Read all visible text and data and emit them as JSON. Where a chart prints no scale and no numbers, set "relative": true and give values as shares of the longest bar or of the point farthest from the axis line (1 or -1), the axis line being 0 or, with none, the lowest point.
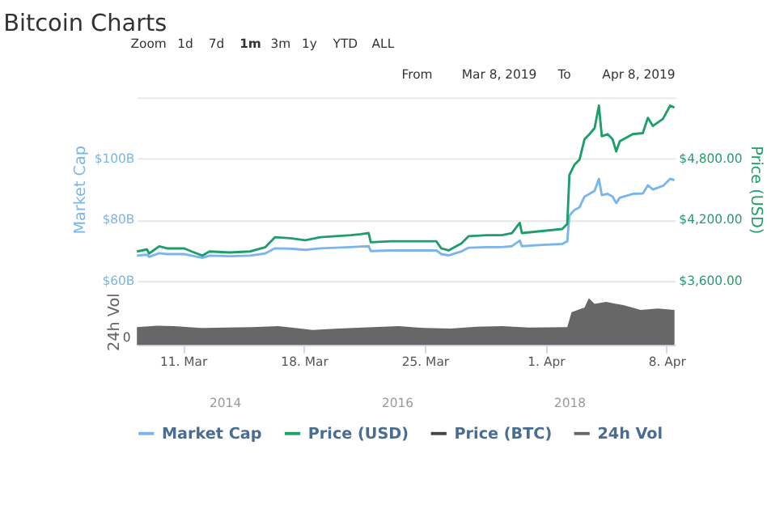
{
  "chart_data": [
    {
      "type": "line",
      "title": "Bitcoin Charts",
      "ylabel": "Market Cap",
      "y2label": "Price (USD)",
      "annotations": [
        "Zoom",
        "1d",
        "7d",
        "1m",
        "3m",
        "1y",
        "YTD",
        "ALL",
        "From",
        "Mar 8, 2019",
        "To",
        "Apr 8, 2019"
      ],
      "x": [
        "2019-03-08T08:00",
        "2019-03-08T22:00",
        "2019-03-09T01:00",
        "2019-03-09T15:00",
        "2019-03-10T02:00",
        "2019-03-11T02:00",
        "2019-03-11T12:00",
        "2019-03-12T03:00",
        "2019-03-12T13:00",
        "2019-03-13T17:00",
        "2019-03-14T21:00",
        "2019-03-15T18:00",
        "2019-03-16T08:00",
        "2019-03-17T05:00",
        "2019-03-18T02:00",
        "2019-03-18T23:00",
        "2019-03-19T20:00",
        "2019-03-20T17:00",
        "2019-03-21T07:00",
        "2019-03-21T18:00",
        "2019-03-21T21:00",
        "2019-03-23T01:00",
        "2019-03-24T05:00",
        "2019-03-25T16:00",
        "2019-03-25T23:00",
        "2019-03-26T09:00",
        "2019-03-27T03:00",
        "2019-03-27T13:00",
        "2019-03-28T14:00",
        "2019-03-29T11:00",
        "2019-03-30T01:00",
        "2019-03-30T12:00",
        "2019-03-30T15:00",
        "2019-03-31T19:00",
        "2019-04-01T23:00",
        "2019-04-02T06:00",
        "2019-04-02T09:00",
        "2019-04-02T16:00",
        "2019-04-02T23:00",
        "2019-04-03T06:00",
        "2019-04-03T13:00",
        "2019-04-03T20:00",
        "2019-04-04T02:00",
        "2019-04-04T06:00",
        "2019-04-04T14:00",
        "2019-04-04T21:00",
        "2019-04-05T02:00",
        "2019-04-05T07:00",
        "2019-04-06T01:00",
        "2019-04-06T15:00",
        "2019-04-06T22:00",
        "2019-04-07T05:00",
        "2019-04-07T19:00",
        "2019-04-08T05:00",
        "2019-04-08T11:00"
      ],
      "series": [
        {
          "name": "Market Cap",
          "color": "#7cb5ec",
          "values": [
            68.3,
            68.6,
            67.9,
            69.1,
            68.8,
            68.8,
            68.3,
            67.6,
            68.3,
            68.1,
            68.3,
            69.0,
            70.7,
            70.6,
            70.2,
            70.7,
            70.9,
            71.1,
            71.3,
            71.4,
            69.8,
            70.0,
            70.0,
            70.0,
            68.8,
            68.4,
            69.7,
            70.9,
            71.1,
            71.1,
            71.4,
            73.2,
            71.4,
            71.8,
            72.1,
            73.0,
            81.4,
            83.2,
            84.1,
            87.6,
            88.5,
            89.5,
            93.4,
            88.1,
            88.5,
            87.6,
            85.5,
            87.2,
            88.5,
            88.6,
            91.3,
            89.9,
            91.1,
            93.4,
            93.0
          ]
        },
        {
          "name": "Price (USD)",
          "color": "#1e9e6a",
          "axis": "y2",
          "values": [
            3890,
            3910,
            3870,
            3940,
            3920,
            3920,
            3890,
            3850,
            3890,
            3880,
            3890,
            3930,
            4030,
            4020,
            4000,
            4030,
            4040,
            4050,
            4060,
            4070,
            3980,
            3990,
            3990,
            3990,
            3920,
            3900,
            3970,
            4040,
            4050,
            4050,
            4070,
            4170,
            4070,
            4090,
            4110,
            4160,
            4640,
            4740,
            4790,
            4990,
            5040,
            5100,
            5320,
            5020,
            5040,
            4990,
            4870,
            4970,
            5040,
            5050,
            5200,
            5120,
            5190,
            5320,
            5300
          ]
        },
        {
          "name": "Price (BTC)",
          "color": "#434348",
          "values": [
            null,
            null,
            null,
            null,
            null,
            null,
            null,
            null,
            null,
            null,
            null,
            null,
            null,
            null,
            null,
            null,
            null,
            null,
            null,
            null,
            null,
            null,
            null,
            null,
            null,
            null,
            null,
            null,
            null,
            null,
            null,
            null,
            null,
            null,
            null,
            null,
            null,
            null,
            null,
            null,
            null,
            null,
            null,
            null,
            null,
            null,
            null,
            null,
            null,
            null,
            null,
            null,
            null,
            null,
            null
          ]
        }
      ],
      "xlim": [
        "2019-03-08T08:00",
        "2019-04-08T12:00"
      ],
      "ylim": [
        60,
        120
      ],
      "yticks": [
        {
          "value": 60,
          "label": "$60B"
        },
        {
          "value": 80,
          "label": "$80B"
        },
        {
          "value": 100,
          "label": "$100B"
        },
        {
          "value": 120,
          "label": null
        }
      ],
      "y2lim": [
        3600,
        5400
      ],
      "y2ticks": [
        {
          "value": 3600,
          "label": "$3,600.00"
        },
        {
          "value": 4200,
          "label": "$4,200.00"
        },
        {
          "value": 4800,
          "label": "$4,800.00"
        },
        {
          "value": 5400,
          "label": null
        }
      ],
      "tick_labels": "y",
      "grid": "y",
      "marker": "none",
      "line_style": "solid",
      "legend": "bottom"
    },
    {
      "type": "area",
      "relative": true,
      "ylabel": "24h Vol",
      "annotations": [
        "0"
      ],
      "series": [
        {
          "name": "24h Vol",
          "color": "#676767",
          "x": [
            "2019-03-08T08:00",
            "2019-03-09T12:00",
            "2019-03-10T12:00",
            "2019-03-12T00:00",
            "2019-03-13T12:00",
            "2019-03-15T00:00",
            "2019-03-16T12:00",
            "2019-03-17T12:00",
            "2019-03-18T12:00",
            "2019-03-20T00:00",
            "2019-03-22T00:00",
            "2019-03-23T12:00",
            "2019-03-25T00:00",
            "2019-03-26T12:00",
            "2019-03-28T00:00",
            "2019-03-29T12:00",
            "2019-03-31T00:00",
            "2019-04-02T06:00",
            "2019-04-02T12:00",
            "2019-04-03T06:00",
            "2019-04-03T12:00",
            "2019-04-03T20:00",
            "2019-04-04T12:00",
            "2019-04-05T12:00",
            "2019-04-06T12:00",
            "2019-04-07T12:00",
            "2019-04-08T11:00"
          ],
          "values": [
            0.38,
            0.41,
            0.4,
            0.36,
            0.37,
            0.38,
            0.4,
            0.36,
            0.32,
            0.35,
            0.38,
            0.4,
            0.36,
            0.35,
            0.39,
            0.4,
            0.37,
            0.38,
            0.7,
            0.8,
            1.0,
            0.88,
            0.92,
            0.85,
            0.75,
            0.78,
            0.75
          ]
        }
      ],
      "xlim": [
        "2019-03-08T08:00",
        "2019-04-08T12:00"
      ],
      "xticks": [
        {
          "value": "2019-03-11",
          "label": "11. Mar"
        },
        {
          "value": "2019-03-18",
          "label": "18. Mar"
        },
        {
          "value": "2019-03-25",
          "label": "25. Mar"
        },
        {
          "value": "2019-04-01",
          "label": "1. Apr"
        },
        {
          "value": "2019-04-08",
          "label": "8. Apr"
        }
      ],
      "legend": "bottom"
    },
    {
      "type": "other",
      "annotations": [
        "2014",
        "2016",
        "2018"
      ]
    }
  ]
}
